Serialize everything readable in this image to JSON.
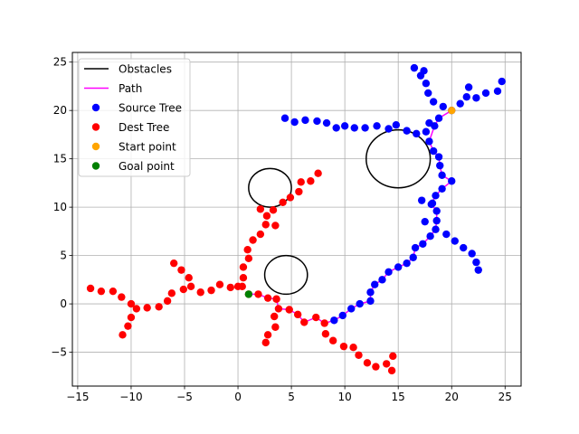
{
  "chart_data": {
    "type": "scatter",
    "title": "",
    "xlabel": "",
    "ylabel": "",
    "xlim": [
      -15.5,
      26.5
    ],
    "ylim": [
      -8.5,
      26.0
    ],
    "x_ticks": [
      -15,
      -10,
      -5,
      0,
      5,
      10,
      15,
      20,
      25
    ],
    "y_ticks": [
      -5,
      0,
      5,
      10,
      15,
      20,
      25
    ],
    "grid": true,
    "legend_position": "top-left",
    "legend": [
      {
        "label": "Obstacles",
        "kind": "line",
        "color": "#000000"
      },
      {
        "label": "Path",
        "kind": "line",
        "color": "#ff00ff"
      },
      {
        "label": "Source Tree",
        "kind": "marker",
        "color": "#0000ff"
      },
      {
        "label": "Dest Tree",
        "kind": "marker",
        "color": "#ff0000"
      },
      {
        "label": "Start point",
        "kind": "marker",
        "color": "#ffa500"
      },
      {
        "label": "Goal point",
        "kind": "marker",
        "color": "#008000"
      }
    ],
    "obstacles": [
      {
        "cx": 15.0,
        "cy": 15.0,
        "r": 3.0
      },
      {
        "cx": 3.0,
        "cy": 12.0,
        "r": 2.0
      },
      {
        "cx": 4.5,
        "cy": 3.0,
        "r": 2.0
      }
    ],
    "path": [
      [
        20.0,
        20.0
      ],
      [
        18.8,
        19.2
      ],
      [
        18.4,
        18.4
      ],
      [
        17.9,
        16.8
      ],
      [
        18.3,
        15.8
      ],
      [
        18.8,
        15.2
      ],
      [
        18.9,
        14.3
      ],
      [
        19.1,
        13.3
      ],
      [
        20.0,
        12.7
      ],
      [
        19.1,
        11.9
      ],
      [
        18.5,
        11.2
      ],
      [
        18.1,
        10.3
      ],
      [
        18.6,
        9.6
      ],
      [
        18.6,
        8.6
      ],
      [
        18.5,
        7.7
      ],
      [
        18.0,
        7.0
      ],
      [
        17.3,
        6.2
      ],
      [
        16.6,
        5.8
      ],
      [
        16.4,
        4.8
      ],
      [
        15.8,
        4.2
      ],
      [
        15.0,
        3.8
      ],
      [
        14.1,
        3.3
      ],
      [
        13.5,
        2.5
      ],
      [
        12.8,
        2.0
      ],
      [
        12.4,
        1.2
      ],
      [
        12.4,
        0.3
      ],
      [
        11.4,
        0.0
      ],
      [
        10.6,
        -0.5
      ],
      [
        9.8,
        -1.2
      ],
      [
        9.0,
        -1.7
      ],
      [
        8.1,
        -2.0
      ],
      [
        7.3,
        -1.4
      ],
      [
        6.2,
        -1.9
      ],
      [
        5.6,
        -1.1
      ],
      [
        4.8,
        -0.6
      ],
      [
        3.8,
        -0.5
      ],
      [
        3.6,
        0.5
      ],
      [
        2.8,
        0.6
      ],
      [
        1.9,
        1.0
      ],
      [
        1.0,
        1.0
      ]
    ],
    "series": [
      {
        "name": "Source Tree",
        "color": "#0000ff",
        "points": [
          [
            20.0,
            20.0
          ],
          [
            18.8,
            19.2
          ],
          [
            18.4,
            18.4
          ],
          [
            17.9,
            16.8
          ],
          [
            18.3,
            15.8
          ],
          [
            18.8,
            15.2
          ],
          [
            18.9,
            14.3
          ],
          [
            19.1,
            13.3
          ],
          [
            20.0,
            12.7
          ],
          [
            19.1,
            11.9
          ],
          [
            18.5,
            11.2
          ],
          [
            18.1,
            10.3
          ],
          [
            18.6,
            9.6
          ],
          [
            18.6,
            8.6
          ],
          [
            18.5,
            7.7
          ],
          [
            18.0,
            7.0
          ],
          [
            17.3,
            6.2
          ],
          [
            16.6,
            5.8
          ],
          [
            16.4,
            4.8
          ],
          [
            15.8,
            4.2
          ],
          [
            15.0,
            3.8
          ],
          [
            14.1,
            3.3
          ],
          [
            13.5,
            2.5
          ],
          [
            12.8,
            2.0
          ],
          [
            12.4,
            1.2
          ],
          [
            12.4,
            0.3
          ],
          [
            11.4,
            0.0
          ],
          [
            10.6,
            -0.5
          ],
          [
            9.8,
            -1.2
          ],
          [
            9.0,
            -1.7
          ],
          [
            16.5,
            24.4
          ],
          [
            17.1,
            23.6
          ],
          [
            17.4,
            24.1
          ],
          [
            17.6,
            22.8
          ],
          [
            17.8,
            21.8
          ],
          [
            18.3,
            20.9
          ],
          [
            19.2,
            20.4
          ],
          [
            20.8,
            20.7
          ],
          [
            21.4,
            21.4
          ],
          [
            21.6,
            22.4
          ],
          [
            22.3,
            21.3
          ],
          [
            23.2,
            21.8
          ],
          [
            24.3,
            22.0
          ],
          [
            24.7,
            23.0
          ],
          [
            17.9,
            18.7
          ],
          [
            17.6,
            17.8
          ],
          [
            16.7,
            17.6
          ],
          [
            15.8,
            17.9
          ],
          [
            14.8,
            18.5
          ],
          [
            14.1,
            18.1
          ],
          [
            13.0,
            18.4
          ],
          [
            11.9,
            18.2
          ],
          [
            10.9,
            18.2
          ],
          [
            10.0,
            18.4
          ],
          [
            9.2,
            18.2
          ],
          [
            8.3,
            18.7
          ],
          [
            7.4,
            18.9
          ],
          [
            6.3,
            19.0
          ],
          [
            5.3,
            18.8
          ],
          [
            4.4,
            19.2
          ],
          [
            17.2,
            10.7
          ],
          [
            18.2,
            10.4
          ],
          [
            17.5,
            8.5
          ],
          [
            19.5,
            7.2
          ],
          [
            20.3,
            6.5
          ],
          [
            21.1,
            5.8
          ],
          [
            21.9,
            5.2
          ],
          [
            22.3,
            4.3
          ],
          [
            22.5,
            3.5
          ]
        ]
      },
      {
        "name": "Dest Tree",
        "color": "#ff0000",
        "points": [
          [
            1.0,
            1.0
          ],
          [
            1.9,
            1.0
          ],
          [
            2.8,
            0.6
          ],
          [
            3.6,
            0.5
          ],
          [
            3.8,
            -0.5
          ],
          [
            4.8,
            -0.6
          ],
          [
            5.6,
            -1.1
          ],
          [
            6.2,
            -1.9
          ],
          [
            7.3,
            -1.4
          ],
          [
            8.1,
            -2.0
          ],
          [
            8.2,
            -3.1
          ],
          [
            8.9,
            -3.8
          ],
          [
            9.9,
            -4.4
          ],
          [
            10.8,
            -4.5
          ],
          [
            11.3,
            -5.3
          ],
          [
            12.1,
            -6.1
          ],
          [
            12.9,
            -6.5
          ],
          [
            13.9,
            -6.2
          ],
          [
            14.5,
            -5.4
          ],
          [
            14.4,
            -6.9
          ],
          [
            3.4,
            -1.3
          ],
          [
            3.5,
            -2.4
          ],
          [
            2.8,
            -3.2
          ],
          [
            2.6,
            -4.0
          ],
          [
            0.4,
            1.8
          ],
          [
            0.5,
            2.7
          ],
          [
            0.5,
            3.8
          ],
          [
            1.0,
            4.7
          ],
          [
            0.9,
            5.6
          ],
          [
            1.4,
            6.6
          ],
          [
            2.1,
            7.2
          ],
          [
            2.6,
            8.2
          ],
          [
            2.7,
            9.1
          ],
          [
            3.3,
            9.7
          ],
          [
            3.5,
            8.1
          ],
          [
            4.2,
            10.5
          ],
          [
            4.9,
            11.0
          ],
          [
            5.7,
            11.6
          ],
          [
            5.9,
            12.6
          ],
          [
            6.8,
            12.7
          ],
          [
            7.5,
            13.5
          ],
          [
            2.1,
            9.8
          ],
          [
            0.0,
            1.8
          ],
          [
            -0.7,
            1.7
          ],
          [
            -1.7,
            2.0
          ],
          [
            -2.5,
            1.4
          ],
          [
            -3.5,
            1.2
          ],
          [
            -4.4,
            1.8
          ],
          [
            -5.1,
            1.5
          ],
          [
            -4.6,
            2.7
          ],
          [
            -5.3,
            3.5
          ],
          [
            -6.0,
            4.2
          ],
          [
            -6.2,
            1.1
          ],
          [
            -6.6,
            0.3
          ],
          [
            -7.4,
            -0.3
          ],
          [
            -8.5,
            -0.4
          ],
          [
            -9.5,
            -0.5
          ],
          [
            -10.0,
            0.0
          ],
          [
            -10.9,
            0.7
          ],
          [
            -11.7,
            1.3
          ],
          [
            -12.8,
            1.3
          ],
          [
            -13.8,
            1.6
          ],
          [
            -10.0,
            -1.4
          ],
          [
            -10.3,
            -2.3
          ],
          [
            -10.8,
            -3.2
          ]
        ]
      },
      {
        "name": "Start point",
        "color": "#ffa500",
        "points": [
          [
            20.0,
            20.0
          ]
        ]
      },
      {
        "name": "Goal point",
        "color": "#008000",
        "points": [
          [
            1.0,
            1.0
          ]
        ]
      }
    ]
  }
}
